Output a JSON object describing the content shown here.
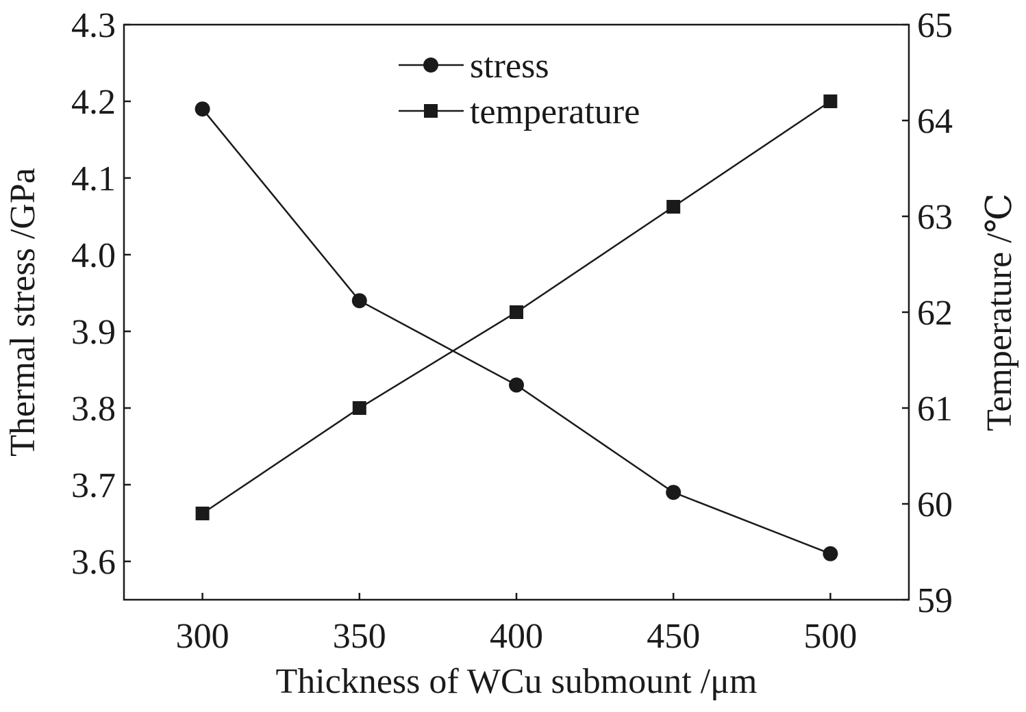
{
  "chart_data": {
    "type": "line",
    "xlabel": "Thickness of WCu submount /μm",
    "ylabel_left": "Thermal stress /GPa",
    "ylabel_right": "Temperature /℃",
    "x": [
      300,
      350,
      400,
      450,
      500
    ],
    "x_ticks": [
      "300",
      "350",
      "400",
      "450",
      "500"
    ],
    "xlim": [
      275,
      525
    ],
    "ylim_left": [
      3.55,
      4.3
    ],
    "ylim_right": [
      59,
      65
    ],
    "y_ticks_left": [
      "3.6",
      "3.7",
      "3.8",
      "3.9",
      "4.0",
      "4.1",
      "4.2",
      "4.3"
    ],
    "y_ticks_right": [
      "59",
      "60",
      "61",
      "62",
      "63",
      "64",
      "65"
    ],
    "grid": false,
    "legend_position": "top-center",
    "series": [
      {
        "name": "stress",
        "axis": "left",
        "marker": "circle",
        "values": [
          4.19,
          3.94,
          3.83,
          3.69,
          3.61
        ]
      },
      {
        "name": "temperature",
        "axis": "right",
        "marker": "square",
        "values": [
          59.9,
          61.0,
          62.0,
          63.1,
          64.2
        ]
      }
    ]
  }
}
